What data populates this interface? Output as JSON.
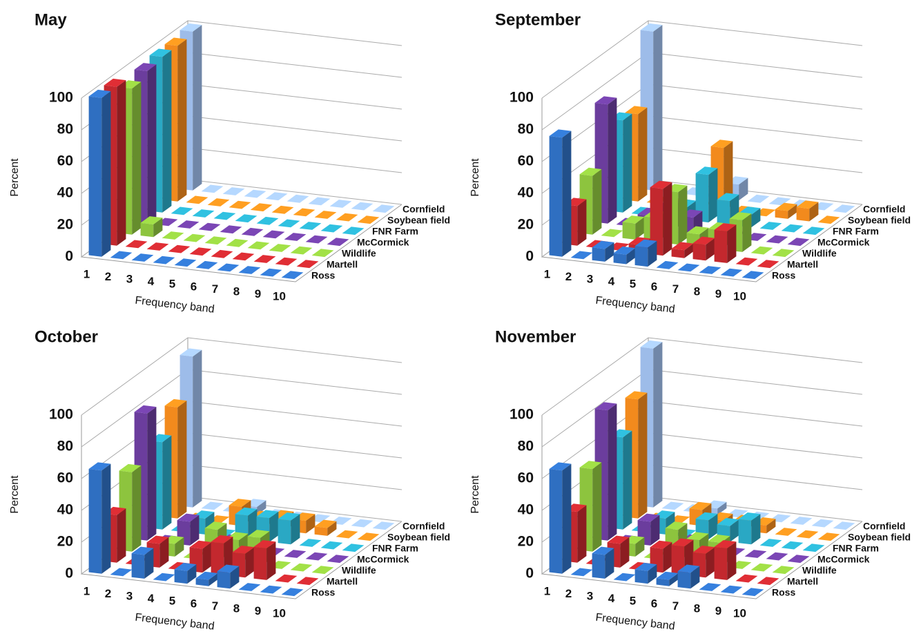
{
  "chart_data": [
    {
      "type": "bar",
      "title": "May",
      "x_label": "Frequency band",
      "y_label": "Percent",
      "categories": [
        "1",
        "2",
        "3",
        "4",
        "5",
        "6",
        "7",
        "8",
        "9",
        "10"
      ],
      "ylim": [
        0,
        100
      ],
      "yticks": [
        0,
        20,
        40,
        60,
        80,
        100
      ],
      "grid": true,
      "series": [
        {
          "name": "Ross",
          "color": "#2f6fc1",
          "values": [
            100,
            0,
            0,
            0,
            0,
            0,
            0,
            0,
            0,
            0
          ]
        },
        {
          "name": "Martell",
          "color": "#c3282e",
          "values": [
            100,
            0,
            0,
            0,
            0,
            0,
            0,
            0,
            0,
            0
          ]
        },
        {
          "name": "Wildlife",
          "color": "#8dc43e",
          "values": [
            92,
            8,
            0,
            0,
            0,
            0,
            0,
            0,
            0,
            0
          ]
        },
        {
          "name": "McCormick",
          "color": "#6b3d9d",
          "values": [
            96,
            0,
            0,
            0,
            0,
            0,
            0,
            0,
            0,
            0
          ]
        },
        {
          "name": "FNR Farm",
          "color": "#2aa8c4",
          "values": [
            98,
            0,
            0,
            0,
            0,
            0,
            0,
            0,
            0,
            0
          ]
        },
        {
          "name": "Soybean field",
          "color": "#f28a1d",
          "values": [
            98,
            0,
            0,
            0,
            0,
            0,
            0,
            0,
            0,
            0
          ]
        },
        {
          "name": "Cornfield",
          "color": "#9dbce9",
          "values": [
            100,
            0,
            0,
            0,
            0,
            0,
            0,
            0,
            0,
            0
          ]
        }
      ]
    },
    {
      "type": "bar",
      "title": "September",
      "x_label": "Frequency band",
      "y_label": "Percent",
      "categories": [
        "1",
        "2",
        "3",
        "4",
        "5",
        "6",
        "7",
        "8",
        "9",
        "10"
      ],
      "ylim": [
        0,
        100
      ],
      "yticks": [
        0,
        20,
        40,
        60,
        80,
        100
      ],
      "grid": true,
      "series": [
        {
          "name": "Ross",
          "color": "#2f6fc1",
          "values": [
            75,
            0,
            8,
            6,
            12,
            0,
            0,
            0,
            0,
            0
          ]
        },
        {
          "name": "Martell",
          "color": "#c3282e",
          "values": [
            25,
            0,
            0,
            5,
            42,
            5,
            10,
            20,
            0,
            0
          ]
        },
        {
          "name": "Wildlife",
          "color": "#8dc43e",
          "values": [
            37,
            0,
            10,
            15,
            33,
            8,
            12,
            20,
            0,
            0
          ]
        },
        {
          "name": "McCormick",
          "color": "#6b3d9d",
          "values": [
            75,
            0,
            8,
            15,
            10,
            0,
            0,
            0,
            0,
            0
          ]
        },
        {
          "name": "FNR Farm",
          "color": "#2aa8c4",
          "values": [
            58,
            0,
            0,
            8,
            30,
            15,
            8,
            0,
            0,
            0
          ]
        },
        {
          "name": "Soybean field",
          "color": "#f28a1d",
          "values": [
            55,
            0,
            0,
            0,
            40,
            0,
            0,
            5,
            8,
            0
          ]
        },
        {
          "name": "Cornfield",
          "color": "#9dbce9",
          "values": [
            100,
            0,
            0,
            0,
            10,
            0,
            0,
            0,
            0,
            0
          ]
        }
      ]
    },
    {
      "type": "bar",
      "title": "October",
      "x_label": "Frequency band",
      "y_label": "Percent",
      "categories": [
        "1",
        "2",
        "3",
        "4",
        "5",
        "6",
        "7",
        "8",
        "9",
        "10"
      ],
      "ylim": [
        0,
        100
      ],
      "yticks": [
        0,
        20,
        40,
        60,
        80,
        100
      ],
      "grid": true,
      "series": [
        {
          "name": "Ross",
          "color": "#2f6fc1",
          "values": [
            65,
            0,
            15,
            0,
            8,
            4,
            10,
            0,
            0,
            0
          ]
        },
        {
          "name": "Martell",
          "color": "#c3282e",
          "values": [
            30,
            0,
            15,
            0,
            15,
            20,
            15,
            20,
            0,
            0
          ]
        },
        {
          "name": "Wildlife",
          "color": "#8dc43e",
          "values": [
            50,
            0,
            8,
            0,
            20,
            15,
            18,
            0,
            0,
            0
          ]
        },
        {
          "name": "McCormick",
          "color": "#6b3d9d",
          "values": [
            80,
            0,
            15,
            0,
            5,
            5,
            0,
            0,
            0,
            0
          ]
        },
        {
          "name": "FNR Farm",
          "color": "#2aa8c4",
          "values": [
            55,
            0,
            10,
            0,
            15,
            15,
            15,
            0,
            0,
            0
          ]
        },
        {
          "name": "Soybean field",
          "color": "#f28a1d",
          "values": [
            70,
            0,
            0,
            12,
            6,
            8,
            8,
            5,
            0,
            0
          ]
        },
        {
          "name": "Cornfield",
          "color": "#9dbce9",
          "values": [
            95,
            0,
            0,
            5,
            0,
            0,
            0,
            0,
            0,
            0
          ]
        }
      ]
    },
    {
      "type": "bar",
      "title": "November",
      "x_label": "Frequency band",
      "y_label": "Percent",
      "categories": [
        "1",
        "2",
        "3",
        "4",
        "5",
        "6",
        "7",
        "8",
        "9",
        "10"
      ],
      "ylim": [
        0,
        100
      ],
      "yticks": [
        0,
        20,
        40,
        60,
        80,
        100
      ],
      "grid": true,
      "series": [
        {
          "name": "Ross",
          "color": "#2f6fc1",
          "values": [
            65,
            0,
            15,
            0,
            8,
            4,
            10,
            0,
            0,
            0
          ]
        },
        {
          "name": "Martell",
          "color": "#c3282e",
          "values": [
            32,
            0,
            15,
            0,
            15,
            18,
            15,
            20,
            0,
            0
          ]
        },
        {
          "name": "Wildlife",
          "color": "#8dc43e",
          "values": [
            52,
            0,
            8,
            0,
            20,
            15,
            15,
            0,
            0,
            0
          ]
        },
        {
          "name": "McCormick",
          "color": "#6b3d9d",
          "values": [
            82,
            0,
            15,
            0,
            5,
            0,
            0,
            0,
            0,
            0
          ]
        },
        {
          "name": "FNR Farm",
          "color": "#2aa8c4",
          "values": [
            58,
            0,
            10,
            0,
            12,
            10,
            15,
            0,
            0,
            0
          ]
        },
        {
          "name": "Soybean field",
          "color": "#f28a1d",
          "values": [
            75,
            0,
            0,
            10,
            5,
            5,
            5,
            0,
            0,
            0
          ]
        },
        {
          "name": "Cornfield",
          "color": "#9dbce9",
          "values": [
            100,
            0,
            0,
            4,
            0,
            0,
            0,
            0,
            0,
            0
          ]
        }
      ]
    }
  ]
}
